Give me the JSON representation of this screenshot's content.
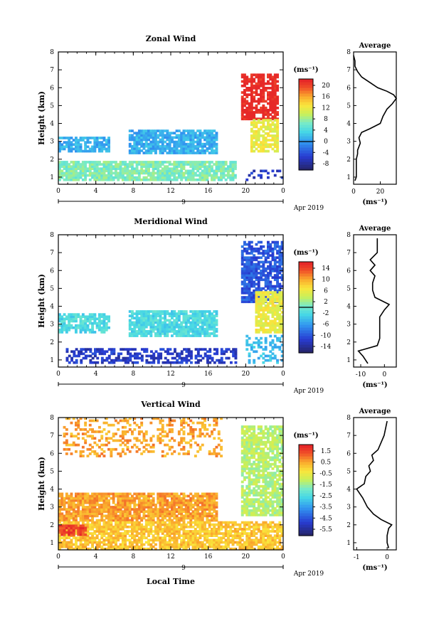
{
  "chart_data": [
    {
      "type": "heatmap",
      "title": "Zonal Wind",
      "xlabel": "",
      "ylabel": "Height (km)",
      "x_ticks": [
        "0",
        "4",
        "8",
        "12",
        "16",
        "20",
        "0"
      ],
      "x_range": [
        0,
        24
      ],
      "y_ticks": [
        "1",
        "2",
        "3",
        "4",
        "5",
        "6",
        "7",
        "8"
      ],
      "y_range": [
        0.6,
        8
      ],
      "date_label": "9",
      "month_label": "Apr 2019",
      "colorbar": {
        "unit": "(ms⁻¹)",
        "ticks": [
          "20",
          "16",
          "12",
          "8",
          "4",
          "0",
          "-4",
          "-8"
        ],
        "range": [
          -10,
          22
        ],
        "zero_line": 0
      },
      "regions": [
        {
          "x": [
            0,
            19
          ],
          "y": [
            0.8,
            1.8
          ],
          "value": 7,
          "coverage": 0.85,
          "note": "low layer"
        },
        {
          "x": [
            0,
            5.5
          ],
          "y": [
            2.4,
            3.2
          ],
          "value": 1,
          "coverage": 0.75
        },
        {
          "x": [
            7.5,
            17
          ],
          "y": [
            2.3,
            3.6
          ],
          "value": 1,
          "coverage": 0.85
        },
        {
          "x": [
            19.5,
            23.5
          ],
          "y": [
            4.2,
            6.7
          ],
          "value": 22,
          "coverage": 0.8
        },
        {
          "x": [
            20.5,
            23.5
          ],
          "y": [
            2.4,
            4.2
          ],
          "value": 12,
          "coverage": 0.7
        },
        {
          "x": [
            19.5,
            23.8
          ],
          "y": [
            0.8,
            1.4
          ],
          "value": -6,
          "coverage": 0.25
        }
      ],
      "average": {
        "title": "Average",
        "xlabel": "(ms⁻¹)",
        "x_ticks": [
          "0",
          "20"
        ],
        "x_range": [
          0,
          32
        ],
        "heights": [
          0.8,
          1.0,
          1.5,
          2.0,
          2.3,
          2.5,
          2.9,
          3.2,
          3.5,
          3.7,
          4.0,
          4.4,
          4.8,
          5.1,
          5.4,
          5.6,
          5.8,
          6.0,
          6.3,
          6.6,
          6.9,
          7.2,
          7.5,
          7.8
        ],
        "values": [
          1,
          2,
          2,
          2,
          3,
          3,
          5,
          4,
          6,
          12,
          20,
          22,
          25,
          29,
          32,
          30,
          25,
          18,
          12,
          6,
          3,
          1,
          1,
          0
        ]
      }
    },
    {
      "type": "heatmap",
      "title": "Meridional Wind",
      "xlabel": "",
      "ylabel": "Height (km)",
      "x_ticks": [
        "0",
        "4",
        "8",
        "12",
        "16",
        "20",
        "0"
      ],
      "x_range": [
        0,
        24
      ],
      "y_ticks": [
        "1",
        "2",
        "3",
        "4",
        "5",
        "6",
        "7",
        "8"
      ],
      "y_range": [
        0.6,
        8
      ],
      "date_label": "9",
      "month_label": "Apr 2019",
      "colorbar": {
        "unit": "(ms⁻¹)",
        "ticks": [
          "14",
          "10",
          "6",
          "2",
          "-2",
          "-6",
          "-10",
          "-14"
        ],
        "range": [
          -16,
          16
        ],
        "zero_line": 0
      },
      "regions": [
        {
          "x": [
            0,
            5.5
          ],
          "y": [
            2.5,
            3.5
          ],
          "value": -2,
          "coverage": 0.8
        },
        {
          "x": [
            7.5,
            17
          ],
          "y": [
            2.3,
            3.7
          ],
          "value": -2,
          "coverage": 0.85
        },
        {
          "x": [
            0.8,
            19
          ],
          "y": [
            0.8,
            1.6
          ],
          "value": -12,
          "coverage": 0.55
        },
        {
          "x": [
            19.5,
            23.8
          ],
          "y": [
            4.2,
            7.6
          ],
          "value": -10,
          "coverage": 0.75
        },
        {
          "x": [
            21,
            24
          ],
          "y": [
            2.5,
            4.8
          ],
          "value": 6,
          "coverage": 0.8
        },
        {
          "x": [
            20,
            23.8
          ],
          "y": [
            0.8,
            2.4
          ],
          "value": -4,
          "coverage": 0.35
        }
      ],
      "average": {
        "title": "Average",
        "xlabel": "(ms⁻¹)",
        "x_ticks": [
          "-10",
          "0"
        ],
        "x_range": [
          -13,
          5
        ],
        "heights": [
          0.8,
          1.2,
          1.5,
          1.8,
          2.2,
          2.6,
          3.0,
          3.4,
          3.8,
          4.1,
          4.5,
          4.9,
          5.3,
          5.7,
          6.0,
          6.3,
          6.6,
          7.0,
          7.4,
          7.8
        ],
        "values": [
          -7,
          -9,
          -11,
          -3,
          -2,
          -2,
          -2,
          -2,
          0,
          2,
          -4,
          -5,
          -5,
          -4,
          -6,
          -4,
          -6,
          -3,
          -3,
          -3
        ]
      }
    },
    {
      "type": "heatmap",
      "title": "Vertical Wind",
      "xlabel": "Local Time",
      "ylabel": "Height (km)",
      "x_ticks": [
        "0",
        "4",
        "8",
        "12",
        "16",
        "20",
        "0"
      ],
      "x_range": [
        0,
        24
      ],
      "y_ticks": [
        "1",
        "2",
        "3",
        "4",
        "5",
        "6",
        "7",
        "8"
      ],
      "y_range": [
        0.6,
        8
      ],
      "date_label": "9",
      "month_label": "Apr 2019",
      "colorbar": {
        "unit": "(ms⁻¹)",
        "ticks": [
          "1.5",
          "0.5",
          "-0.5",
          "-1.5",
          "-2.5",
          "-3.5",
          "-4.5",
          "-5.5"
        ],
        "range": [
          -6,
          2
        ],
        "zero_line": null
      },
      "regions": [
        {
          "x": [
            0,
            17
          ],
          "y": [
            2.2,
            3.8
          ],
          "value": 0.6,
          "coverage": 0.85
        },
        {
          "x": [
            0,
            24
          ],
          "y": [
            0.6,
            2.2
          ],
          "value": 0.2,
          "coverage": 0.8
        },
        {
          "x": [
            0,
            3
          ],
          "y": [
            1.4,
            2.0
          ],
          "value": 1.6,
          "coverage": 0.9
        },
        {
          "x": [
            0.5,
            17.5
          ],
          "y": [
            5.8,
            8.0
          ],
          "value": 0.6,
          "coverage": 0.3
        },
        {
          "x": [
            19.5,
            24
          ],
          "y": [
            2.5,
            7.5
          ],
          "value": -1.2,
          "coverage": 0.8
        }
      ],
      "average": {
        "title": "Average",
        "xlabel": "(ms⁻¹)",
        "x_ticks": [
          "-1",
          "0"
        ],
        "x_range": [
          -1.1,
          0.3
        ],
        "heights": [
          0.7,
          1.0,
          1.4,
          1.8,
          2.0,
          2.3,
          2.6,
          3.0,
          3.5,
          4.0,
          4.3,
          4.7,
          5.0,
          5.3,
          5.6,
          5.9,
          6.2,
          6.6,
          7.0,
          7.4,
          7.8
        ],
        "values": [
          0.05,
          0.0,
          0.0,
          0.05,
          0.15,
          -0.2,
          -0.45,
          -0.65,
          -0.8,
          -1.0,
          -0.75,
          -0.7,
          -0.55,
          -0.6,
          -0.45,
          -0.5,
          -0.3,
          -0.2,
          -0.1,
          -0.05,
          0.0
        ]
      }
    }
  ]
}
